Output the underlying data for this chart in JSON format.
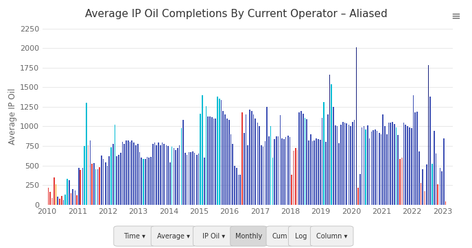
{
  "title": "Average IP Oil Completions By Current Operator – Aliased",
  "ylabel": "Average IP Oil",
  "ylim": [
    0,
    2250
  ],
  "yticks": [
    0,
    250,
    500,
    750,
    1000,
    1250,
    1500,
    1750,
    2000,
    2250
  ],
  "xlim_start": 2009.85,
  "xlim_end": 2023.35,
  "xtick_labels": [
    "2010",
    "2011",
    "2012",
    "2013",
    "2014",
    "2015",
    "2016",
    "2017",
    "2018",
    "2019",
    "2020",
    "2021",
    "2022",
    "2023"
  ],
  "background_color": "#ffffff",
  "plot_bg_color": "#ffffff",
  "grid_color": "#e8e8e8",
  "title_fontsize": 11,
  "axis_fontsize": 8.5,
  "tick_fontsize": 8,
  "footer_buttons": [
    "Time ▾",
    "Average ▾",
    "IP Oil ▾",
    "Monthly",
    "Cum",
    "Log",
    "Column ▾"
  ],
  "footer_active": "Monthly",
  "series": [
    {
      "year": 2010.04,
      "value": 215,
      "color": "#e53935"
    },
    {
      "year": 2010.1,
      "value": 160,
      "color": "#e53935"
    },
    {
      "year": 2010.17,
      "value": 85,
      "color": "#e8a0a0"
    },
    {
      "year": 2010.23,
      "value": 350,
      "color": "#e53935"
    },
    {
      "year": 2010.29,
      "value": 260,
      "color": "#ff9800"
    },
    {
      "year": 2010.35,
      "value": 100,
      "color": "#3f51b5"
    },
    {
      "year": 2010.42,
      "value": 80,
      "color": "#e53935"
    },
    {
      "year": 2010.48,
      "value": 115,
      "color": "#e53935"
    },
    {
      "year": 2010.54,
      "value": 60,
      "color": "#3f51b5"
    },
    {
      "year": 2010.6,
      "value": 130,
      "color": "#00bcd4"
    },
    {
      "year": 2010.67,
      "value": 330,
      "color": "#00bcd4"
    },
    {
      "year": 2010.73,
      "value": 310,
      "color": "#3f51b5"
    },
    {
      "year": 2010.79,
      "value": 150,
      "color": "#e53935"
    },
    {
      "year": 2010.85,
      "value": 200,
      "color": "#3f51b5"
    },
    {
      "year": 2010.92,
      "value": 180,
      "color": "#3f51b5"
    },
    {
      "year": 2010.98,
      "value": 120,
      "color": "#e53935"
    },
    {
      "year": 2011.04,
      "value": 470,
      "color": "#3f51b5"
    },
    {
      "year": 2011.1,
      "value": 440,
      "color": "#e53935"
    },
    {
      "year": 2011.17,
      "value": 470,
      "color": "#3f51b5"
    },
    {
      "year": 2011.23,
      "value": 750,
      "color": "#00bcd4"
    },
    {
      "year": 2011.29,
      "value": 1300,
      "color": "#00bcd4"
    },
    {
      "year": 2011.35,
      "value": 760,
      "color": "#e8a0a0"
    },
    {
      "year": 2011.42,
      "value": 820,
      "color": "#3f51b5"
    },
    {
      "year": 2011.48,
      "value": 520,
      "color": "#e53935"
    },
    {
      "year": 2011.54,
      "value": 535,
      "color": "#3f51b5"
    },
    {
      "year": 2011.6,
      "value": 450,
      "color": "#00bcd4"
    },
    {
      "year": 2011.67,
      "value": 450,
      "color": "#3f51b5"
    },
    {
      "year": 2011.73,
      "value": 480,
      "color": "#e53935"
    },
    {
      "year": 2011.79,
      "value": 630,
      "color": "#3f51b5"
    },
    {
      "year": 2011.85,
      "value": 580,
      "color": "#3f51b5"
    },
    {
      "year": 2011.92,
      "value": 540,
      "color": "#3f51b5"
    },
    {
      "year": 2011.98,
      "value": 500,
      "color": "#3f51b5"
    },
    {
      "year": 2012.04,
      "value": 620,
      "color": "#3f51b5"
    },
    {
      "year": 2012.1,
      "value": 730,
      "color": "#00bcd4"
    },
    {
      "year": 2012.17,
      "value": 780,
      "color": "#3f51b5"
    },
    {
      "year": 2012.23,
      "value": 1020,
      "color": "#00bcd4"
    },
    {
      "year": 2012.29,
      "value": 620,
      "color": "#3f51b5"
    },
    {
      "year": 2012.35,
      "value": 640,
      "color": "#3f51b5"
    },
    {
      "year": 2012.42,
      "value": 660,
      "color": "#3f51b5"
    },
    {
      "year": 2012.48,
      "value": 800,
      "color": "#3f51b5"
    },
    {
      "year": 2012.54,
      "value": 780,
      "color": "#3f51b5"
    },
    {
      "year": 2012.6,
      "value": 820,
      "color": "#3f51b5"
    },
    {
      "year": 2012.67,
      "value": 820,
      "color": "#3f51b5"
    },
    {
      "year": 2012.73,
      "value": 800,
      "color": "#3f51b5"
    },
    {
      "year": 2012.79,
      "value": 820,
      "color": "#3f51b5"
    },
    {
      "year": 2012.85,
      "value": 790,
      "color": "#3f51b5"
    },
    {
      "year": 2012.92,
      "value": 760,
      "color": "#3f51b5"
    },
    {
      "year": 2012.98,
      "value": 780,
      "color": "#3f51b5"
    },
    {
      "year": 2013.04,
      "value": 670,
      "color": "#3f51b5"
    },
    {
      "year": 2013.1,
      "value": 600,
      "color": "#3f51b5"
    },
    {
      "year": 2013.17,
      "value": 580,
      "color": "#00bcd4"
    },
    {
      "year": 2013.23,
      "value": 580,
      "color": "#3f51b5"
    },
    {
      "year": 2013.29,
      "value": 610,
      "color": "#3f51b5"
    },
    {
      "year": 2013.35,
      "value": 600,
      "color": "#3f51b5"
    },
    {
      "year": 2013.42,
      "value": 610,
      "color": "#3f51b5"
    },
    {
      "year": 2013.48,
      "value": 780,
      "color": "#3f51b5"
    },
    {
      "year": 2013.54,
      "value": 790,
      "color": "#3f51b5"
    },
    {
      "year": 2013.6,
      "value": 760,
      "color": "#3f51b5"
    },
    {
      "year": 2013.67,
      "value": 790,
      "color": "#3f51b5"
    },
    {
      "year": 2013.73,
      "value": 760,
      "color": "#3f51b5"
    },
    {
      "year": 2013.79,
      "value": 790,
      "color": "#3f51b5"
    },
    {
      "year": 2013.85,
      "value": 780,
      "color": "#3f51b5"
    },
    {
      "year": 2013.92,
      "value": 760,
      "color": "#3f51b5"
    },
    {
      "year": 2013.98,
      "value": 750,
      "color": "#3f51b5"
    },
    {
      "year": 2014.04,
      "value": 540,
      "color": "#3f51b5"
    },
    {
      "year": 2014.1,
      "value": 740,
      "color": "#00bcd4"
    },
    {
      "year": 2014.17,
      "value": 720,
      "color": "#3f51b5"
    },
    {
      "year": 2014.23,
      "value": 700,
      "color": "#3f51b5"
    },
    {
      "year": 2014.29,
      "value": 720,
      "color": "#3f51b5"
    },
    {
      "year": 2014.35,
      "value": 760,
      "color": "#3f51b5"
    },
    {
      "year": 2014.42,
      "value": 980,
      "color": "#00bcd4"
    },
    {
      "year": 2014.48,
      "value": 1080,
      "color": "#3f51b5"
    },
    {
      "year": 2014.54,
      "value": 660,
      "color": "#3f51b5"
    },
    {
      "year": 2014.6,
      "value": 640,
      "color": "#3f51b5"
    },
    {
      "year": 2014.67,
      "value": 670,
      "color": "#3f51b5"
    },
    {
      "year": 2014.73,
      "value": 670,
      "color": "#3f51b5"
    },
    {
      "year": 2014.79,
      "value": 680,
      "color": "#3f51b5"
    },
    {
      "year": 2014.85,
      "value": 660,
      "color": "#3f51b5"
    },
    {
      "year": 2014.92,
      "value": 640,
      "color": "#3f51b5"
    },
    {
      "year": 2014.98,
      "value": 650,
      "color": "#3f51b5"
    },
    {
      "year": 2015.04,
      "value": 1160,
      "color": "#00bcd4"
    },
    {
      "year": 2015.1,
      "value": 1400,
      "color": "#00bcd4"
    },
    {
      "year": 2015.17,
      "value": 600,
      "color": "#3f51b5"
    },
    {
      "year": 2015.23,
      "value": 1260,
      "color": "#00bcd4"
    },
    {
      "year": 2015.29,
      "value": 1130,
      "color": "#3f51b5"
    },
    {
      "year": 2015.35,
      "value": 1130,
      "color": "#3f51b5"
    },
    {
      "year": 2015.42,
      "value": 1120,
      "color": "#3f51b5"
    },
    {
      "year": 2015.48,
      "value": 1100,
      "color": "#3f51b5"
    },
    {
      "year": 2015.54,
      "value": 1100,
      "color": "#3f51b5"
    },
    {
      "year": 2015.6,
      "value": 1380,
      "color": "#00bcd4"
    },
    {
      "year": 2015.67,
      "value": 1350,
      "color": "#00bcd4"
    },
    {
      "year": 2015.73,
      "value": 1340,
      "color": "#3f51b5"
    },
    {
      "year": 2015.79,
      "value": 1200,
      "color": "#3f51b5"
    },
    {
      "year": 2015.85,
      "value": 1150,
      "color": "#3f51b5"
    },
    {
      "year": 2015.92,
      "value": 1100,
      "color": "#3f51b5"
    },
    {
      "year": 2015.98,
      "value": 1080,
      "color": "#3f51b5"
    },
    {
      "year": 2016.04,
      "value": 900,
      "color": "#3f51b5"
    },
    {
      "year": 2016.1,
      "value": 780,
      "color": "#3f51b5"
    },
    {
      "year": 2016.17,
      "value": 500,
      "color": "#3f51b5"
    },
    {
      "year": 2016.23,
      "value": 470,
      "color": "#3f51b5"
    },
    {
      "year": 2016.29,
      "value": 380,
      "color": "#3f51b5"
    },
    {
      "year": 2016.35,
      "value": 380,
      "color": "#3f51b5"
    },
    {
      "year": 2016.42,
      "value": 1180,
      "color": "#e53935"
    },
    {
      "year": 2016.48,
      "value": 920,
      "color": "#3f51b5"
    },
    {
      "year": 2016.54,
      "value": 1150,
      "color": "#3f51b5"
    },
    {
      "year": 2016.6,
      "value": 760,
      "color": "#3f51b5"
    },
    {
      "year": 2016.67,
      "value": 1210,
      "color": "#3f51b5"
    },
    {
      "year": 2016.73,
      "value": 1200,
      "color": "#3f51b5"
    },
    {
      "year": 2016.79,
      "value": 1150,
      "color": "#3f51b5"
    },
    {
      "year": 2016.85,
      "value": 1100,
      "color": "#3f51b5"
    },
    {
      "year": 2016.92,
      "value": 1050,
      "color": "#3f51b5"
    },
    {
      "year": 2016.98,
      "value": 1000,
      "color": "#3f51b5"
    },
    {
      "year": 2017.04,
      "value": 755,
      "color": "#3f51b5"
    },
    {
      "year": 2017.1,
      "value": 740,
      "color": "#3f51b5"
    },
    {
      "year": 2017.17,
      "value": 810,
      "color": "#3f51b5"
    },
    {
      "year": 2017.23,
      "value": 1245,
      "color": "#3f51b5"
    },
    {
      "year": 2017.29,
      "value": 870,
      "color": "#3f51b5"
    },
    {
      "year": 2017.35,
      "value": 1000,
      "color": "#00bcd4"
    },
    {
      "year": 2017.42,
      "value": 600,
      "color": "#00bcd4"
    },
    {
      "year": 2017.48,
      "value": 840,
      "color": "#3f51b5"
    },
    {
      "year": 2017.54,
      "value": 870,
      "color": "#3f51b5"
    },
    {
      "year": 2017.6,
      "value": 870,
      "color": "#3f51b5"
    },
    {
      "year": 2017.67,
      "value": 1140,
      "color": "#3f51b5"
    },
    {
      "year": 2017.73,
      "value": 850,
      "color": "#3f51b5"
    },
    {
      "year": 2017.79,
      "value": 840,
      "color": "#3f51b5"
    },
    {
      "year": 2017.85,
      "value": 860,
      "color": "#3f51b5"
    },
    {
      "year": 2017.92,
      "value": 880,
      "color": "#3f51b5"
    },
    {
      "year": 2017.98,
      "value": 860,
      "color": "#3f51b5"
    },
    {
      "year": 2018.04,
      "value": 380,
      "color": "#e53935"
    },
    {
      "year": 2018.1,
      "value": 690,
      "color": "#e8a0a0"
    },
    {
      "year": 2018.17,
      "value": 720,
      "color": "#e53935"
    },
    {
      "year": 2018.23,
      "value": 700,
      "color": "#e8a0a0"
    },
    {
      "year": 2018.29,
      "value": 1180,
      "color": "#3f51b5"
    },
    {
      "year": 2018.35,
      "value": 1200,
      "color": "#3f51b5"
    },
    {
      "year": 2018.42,
      "value": 1160,
      "color": "#3f51b5"
    },
    {
      "year": 2018.48,
      "value": 1110,
      "color": "#00bcd4"
    },
    {
      "year": 2018.54,
      "value": 1090,
      "color": "#3f51b5"
    },
    {
      "year": 2018.6,
      "value": 820,
      "color": "#3f51b5"
    },
    {
      "year": 2018.67,
      "value": 900,
      "color": "#3f51b5"
    },
    {
      "year": 2018.73,
      "value": 810,
      "color": "#3f51b5"
    },
    {
      "year": 2018.79,
      "value": 820,
      "color": "#3f51b5"
    },
    {
      "year": 2018.85,
      "value": 850,
      "color": "#3f51b5"
    },
    {
      "year": 2018.92,
      "value": 840,
      "color": "#3f51b5"
    },
    {
      "year": 2018.98,
      "value": 830,
      "color": "#3f51b5"
    },
    {
      "year": 2019.04,
      "value": 1110,
      "color": "#3f51b5"
    },
    {
      "year": 2019.1,
      "value": 1310,
      "color": "#00bcd4"
    },
    {
      "year": 2019.17,
      "value": 800,
      "color": "#3f51b5"
    },
    {
      "year": 2019.23,
      "value": 1150,
      "color": "#3f51b5"
    },
    {
      "year": 2019.29,
      "value": 1660,
      "color": "#1a237e"
    },
    {
      "year": 2019.35,
      "value": 1540,
      "color": "#00bcd4"
    },
    {
      "year": 2019.42,
      "value": 1250,
      "color": "#3f51b5"
    },
    {
      "year": 2019.48,
      "value": 1010,
      "color": "#3f51b5"
    },
    {
      "year": 2019.54,
      "value": 1000,
      "color": "#3f51b5"
    },
    {
      "year": 2019.6,
      "value": 785,
      "color": "#3f51b5"
    },
    {
      "year": 2019.67,
      "value": 1020,
      "color": "#3f51b5"
    },
    {
      "year": 2019.73,
      "value": 1060,
      "color": "#3f51b5"
    },
    {
      "year": 2019.79,
      "value": 1050,
      "color": "#3f51b5"
    },
    {
      "year": 2019.85,
      "value": 1040,
      "color": "#3f51b5"
    },
    {
      "year": 2019.92,
      "value": 1020,
      "color": "#3f51b5"
    },
    {
      "year": 2019.98,
      "value": 1000,
      "color": "#3f51b5"
    },
    {
      "year": 2020.04,
      "value": 1060,
      "color": "#3f51b5"
    },
    {
      "year": 2020.1,
      "value": 1080,
      "color": "#3f51b5"
    },
    {
      "year": 2020.17,
      "value": 2010,
      "color": "#1a237e"
    },
    {
      "year": 2020.23,
      "value": 220,
      "color": "#e53935"
    },
    {
      "year": 2020.29,
      "value": 390,
      "color": "#3f51b5"
    },
    {
      "year": 2020.35,
      "value": 990,
      "color": "#3f51b5"
    },
    {
      "year": 2020.42,
      "value": 1000,
      "color": "#3f51b5"
    },
    {
      "year": 2020.48,
      "value": 960,
      "color": "#00bcd4"
    },
    {
      "year": 2020.54,
      "value": 1010,
      "color": "#3f51b5"
    },
    {
      "year": 2020.6,
      "value": 850,
      "color": "#3f51b5"
    },
    {
      "year": 2020.67,
      "value": 930,
      "color": "#3f51b5"
    },
    {
      "year": 2020.73,
      "value": 950,
      "color": "#3f51b5"
    },
    {
      "year": 2020.79,
      "value": 960,
      "color": "#3f51b5"
    },
    {
      "year": 2020.85,
      "value": 940,
      "color": "#3f51b5"
    },
    {
      "year": 2020.92,
      "value": 920,
      "color": "#3f51b5"
    },
    {
      "year": 2020.98,
      "value": 900,
      "color": "#3f51b5"
    },
    {
      "year": 2021.04,
      "value": 1150,
      "color": "#3f51b5"
    },
    {
      "year": 2021.1,
      "value": 1000,
      "color": "#3f51b5"
    },
    {
      "year": 2021.17,
      "value": 900,
      "color": "#3f51b5"
    },
    {
      "year": 2021.23,
      "value": 1050,
      "color": "#3f51b5"
    },
    {
      "year": 2021.29,
      "value": 1050,
      "color": "#3f51b5"
    },
    {
      "year": 2021.35,
      "value": 1060,
      "color": "#3f51b5"
    },
    {
      "year": 2021.42,
      "value": 1030,
      "color": "#3f51b5"
    },
    {
      "year": 2021.48,
      "value": 990,
      "color": "#00bcd4"
    },
    {
      "year": 2021.54,
      "value": 890,
      "color": "#3f51b5"
    },
    {
      "year": 2021.6,
      "value": 580,
      "color": "#e53935"
    },
    {
      "year": 2021.67,
      "value": 600,
      "color": "#e8a0a0"
    },
    {
      "year": 2021.73,
      "value": 1050,
      "color": "#3f51b5"
    },
    {
      "year": 2021.79,
      "value": 1020,
      "color": "#3f51b5"
    },
    {
      "year": 2021.85,
      "value": 1000,
      "color": "#3f51b5"
    },
    {
      "year": 2021.92,
      "value": 990,
      "color": "#3f51b5"
    },
    {
      "year": 2021.98,
      "value": 980,
      "color": "#3f51b5"
    },
    {
      "year": 2022.04,
      "value": 1400,
      "color": "#3f51b5"
    },
    {
      "year": 2022.1,
      "value": 1180,
      "color": "#3f51b5"
    },
    {
      "year": 2022.17,
      "value": 1190,
      "color": "#3f51b5"
    },
    {
      "year": 2022.23,
      "value": 680,
      "color": "#3f51b5"
    },
    {
      "year": 2022.29,
      "value": 280,
      "color": "#e53935"
    },
    {
      "year": 2022.35,
      "value": 450,
      "color": "#3f51b5"
    },
    {
      "year": 2022.42,
      "value": 170,
      "color": "#e8a0a0"
    },
    {
      "year": 2022.48,
      "value": 510,
      "color": "#3f51b5"
    },
    {
      "year": 2022.54,
      "value": 1780,
      "color": "#1a237e"
    },
    {
      "year": 2022.6,
      "value": 1380,
      "color": "#3f51b5"
    },
    {
      "year": 2022.67,
      "value": 520,
      "color": "#00bcd4"
    },
    {
      "year": 2022.73,
      "value": 940,
      "color": "#3f51b5"
    },
    {
      "year": 2022.79,
      "value": 650,
      "color": "#3f51b5"
    },
    {
      "year": 2022.85,
      "value": 260,
      "color": "#e53935"
    },
    {
      "year": 2022.92,
      "value": 470,
      "color": "#3f51b5"
    },
    {
      "year": 2022.98,
      "value": 430,
      "color": "#3f51b5"
    },
    {
      "year": 2023.04,
      "value": 850,
      "color": "#3f51b5"
    },
    {
      "year": 2023.1,
      "value": 40,
      "color": "#e53935"
    }
  ]
}
